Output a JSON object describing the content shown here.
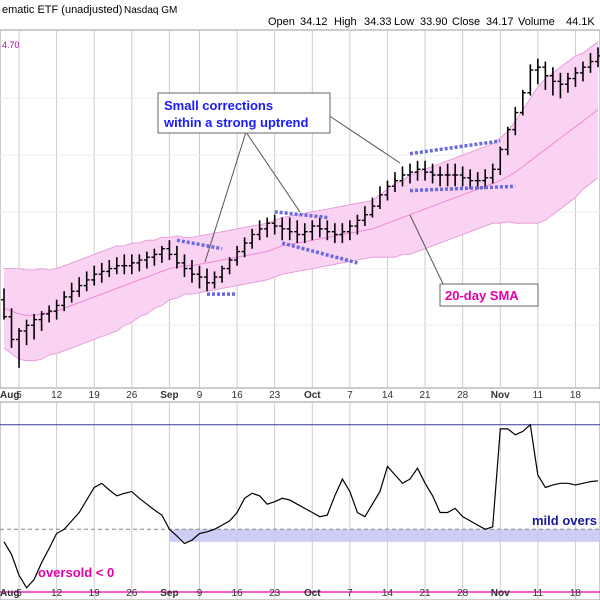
{
  "header": {
    "title_fragment": "ematic ETF (unadjusted)",
    "exchange": "Nasdaq GM",
    "open_label": "Open",
    "open": "34.12",
    "high_label": "High",
    "high": "34.33",
    "low_label": "Low",
    "low": "33.90",
    "close_label": "Close",
    "close": "34.17",
    "volume_label": "Volume",
    "volume": "44.1K",
    "upper_band_label": "4.70"
  },
  "annotations": {
    "corrections_line1": "Small corrections",
    "corrections_line2": "within a strong uptrend",
    "sma_label": "20-day SMA",
    "mild_oversold": "mild overs",
    "oversold": "oversold < 0"
  },
  "colors": {
    "band_fill": "#fbd3f2",
    "band_edge": "#e58fd6",
    "sma_line": "#ee88d8",
    "candle": "#000000",
    "trendline": "#6a6ae0",
    "grid": "#cccccc",
    "osc_line": "#000000",
    "mild_zone": "#c3c6f3",
    "oversold_line": "#e600a8",
    "upper_line": "#3a3a99"
  },
  "x_labels": [
    "Aug",
    "5",
    "12",
    "19",
    "26",
    "Sep",
    "9",
    "16",
    "23",
    "Oct",
    "7",
    "14",
    "21",
    "28",
    "Nov",
    "11",
    "18"
  ],
  "chart_data": [
    {
      "type": "ohlc",
      "title": "",
      "dates": [
        "Aug 1",
        "Aug 2",
        "Aug 5",
        "Aug 6",
        "Aug 7",
        "Aug 8",
        "Aug 9",
        "Aug 12",
        "Aug 13",
        "Aug 14",
        "Aug 15",
        "Aug 16",
        "Aug 19",
        "Aug 20",
        "Aug 21",
        "Aug 22",
        "Aug 23",
        "Aug 26",
        "Aug 27",
        "Aug 28",
        "Aug 29",
        "Aug 30",
        "Sep 3",
        "Sep 4",
        "Sep 5",
        "Sep 6",
        "Sep 9",
        "Sep 10",
        "Sep 11",
        "Sep 12",
        "Sep 13",
        "Sep 16",
        "Sep 17",
        "Sep 18",
        "Sep 19",
        "Sep 20",
        "Sep 23",
        "Sep 24",
        "Sep 25",
        "Sep 26",
        "Sep 27",
        "Sep 30",
        "Oct 1",
        "Oct 2",
        "Oct 3",
        "Oct 4",
        "Oct 7",
        "Oct 8",
        "Oct 9",
        "Oct 10",
        "Oct 11",
        "Oct 14",
        "Oct 15",
        "Oct 16",
        "Oct 17",
        "Oct 18",
        "Oct 21",
        "Oct 22",
        "Oct 23",
        "Oct 24",
        "Oct 25",
        "Oct 28",
        "Oct 29",
        "Oct 30",
        "Oct 31",
        "Nov 1",
        "Nov 4",
        "Nov 5",
        "Nov 6",
        "Nov 7",
        "Nov 8",
        "Nov 11",
        "Nov 12",
        "Nov 13",
        "Nov 14",
        "Nov 15",
        "Nov 18",
        "Nov 19",
        "Nov 20",
        "Nov 21"
      ],
      "open": [
        28.9,
        28.3,
        27.5,
        27.8,
        28.0,
        28.2,
        28.4,
        28.5,
        28.7,
        29.0,
        29.2,
        29.4,
        29.6,
        29.8,
        29.9,
        30.0,
        30.1,
        30.1,
        30.2,
        30.3,
        30.4,
        30.5,
        30.7,
        30.5,
        30.2,
        30.0,
        29.8,
        29.7,
        29.5,
        29.7,
        30.0,
        30.3,
        30.6,
        30.9,
        31.2,
        31.4,
        31.6,
        31.5,
        31.4,
        31.3,
        31.2,
        31.3,
        31.5,
        31.4,
        31.3,
        31.2,
        31.3,
        31.5,
        31.7,
        31.9,
        32.2,
        32.6,
        32.9,
        33.1,
        33.3,
        33.4,
        33.5,
        33.4,
        33.3,
        33.3,
        33.3,
        33.3,
        33.2,
        33.1,
        33.1,
        33.2,
        33.5,
        34.2,
        34.9,
        35.5,
        36.2,
        37.0,
        37.1,
        36.8,
        36.6,
        36.5,
        36.7,
        36.9,
        37.1,
        37.3
      ],
      "high": [
        29.3,
        28.6,
        27.9,
        28.2,
        28.4,
        28.5,
        28.7,
        28.9,
        29.2,
        29.5,
        29.7,
        29.9,
        30.1,
        30.2,
        30.3,
        30.4,
        30.5,
        30.5,
        30.5,
        30.6,
        30.7,
        30.8,
        31.0,
        30.8,
        30.5,
        30.3,
        30.1,
        30.0,
        29.9,
        30.1,
        30.4,
        30.8,
        31.1,
        31.4,
        31.7,
        31.8,
        31.9,
        31.8,
        31.8,
        31.7,
        31.6,
        31.7,
        31.8,
        31.7,
        31.6,
        31.6,
        31.7,
        31.9,
        32.2,
        32.5,
        32.9,
        33.1,
        33.4,
        33.6,
        33.7,
        33.8,
        33.8,
        33.7,
        33.6,
        33.7,
        33.7,
        33.6,
        33.5,
        33.4,
        33.5,
        33.7,
        34.3,
        35.0,
        35.7,
        36.3,
        37.2,
        37.4,
        37.3,
        37.1,
        36.9,
        36.9,
        37.1,
        37.3,
        37.6,
        37.8
      ],
      "low": [
        28.2,
        27.2,
        26.5,
        27.3,
        27.5,
        27.8,
        28.1,
        28.2,
        28.5,
        28.8,
        29.0,
        29.2,
        29.4,
        29.5,
        29.7,
        29.8,
        29.8,
        29.8,
        29.9,
        30.0,
        30.1,
        30.2,
        30.3,
        30.0,
        29.7,
        29.5,
        29.3,
        29.2,
        29.3,
        29.5,
        29.8,
        30.1,
        30.4,
        30.7,
        31.0,
        31.1,
        31.2,
        31.0,
        31.0,
        30.9,
        30.9,
        31.0,
        31.1,
        31.0,
        30.9,
        30.9,
        31.0,
        31.2,
        31.5,
        31.8,
        32.1,
        32.4,
        32.7,
        32.9,
        33.0,
        33.1,
        33.1,
        33.0,
        32.9,
        32.9,
        32.9,
        32.9,
        32.8,
        32.8,
        32.8,
        33.0,
        33.3,
        34.0,
        34.7,
        35.4,
        36.1,
        36.5,
        36.3,
        36.1,
        36.0,
        36.2,
        36.4,
        36.6,
        36.9,
        37.1
      ],
      "close": [
        28.3,
        27.5,
        27.8,
        28.0,
        28.2,
        28.4,
        28.5,
        28.7,
        29.0,
        29.2,
        29.4,
        29.6,
        29.8,
        29.9,
        30.0,
        30.1,
        30.1,
        30.2,
        30.3,
        30.4,
        30.5,
        30.7,
        30.5,
        30.2,
        30.0,
        29.8,
        29.7,
        29.5,
        29.7,
        30.0,
        30.3,
        30.6,
        30.9,
        31.2,
        31.4,
        31.6,
        31.5,
        31.4,
        31.3,
        31.2,
        31.3,
        31.5,
        31.4,
        31.3,
        31.2,
        31.3,
        31.5,
        31.7,
        31.9,
        32.2,
        32.6,
        32.9,
        33.1,
        33.3,
        33.4,
        33.5,
        33.4,
        33.3,
        33.3,
        33.3,
        33.3,
        33.2,
        33.1,
        33.1,
        33.2,
        33.5,
        34.2,
        34.9,
        35.5,
        36.2,
        37.0,
        37.1,
        36.8,
        36.6,
        36.5,
        36.7,
        36.9,
        37.1,
        37.3,
        37.5
      ],
      "sma20": [
        28.6,
        28.5,
        28.4,
        28.35,
        28.35,
        28.4,
        28.45,
        28.5,
        28.6,
        28.7,
        28.8,
        28.9,
        29.0,
        29.1,
        29.2,
        29.3,
        29.4,
        29.5,
        29.6,
        29.7,
        29.8,
        29.9,
        30.0,
        30.05,
        30.1,
        30.1,
        30.15,
        30.2,
        30.25,
        30.3,
        30.35,
        30.4,
        30.45,
        30.5,
        30.55,
        30.6,
        30.7,
        30.8,
        30.85,
        30.9,
        30.95,
        31.0,
        31.05,
        31.1,
        31.15,
        31.2,
        31.25,
        31.3,
        31.35,
        31.4,
        31.5,
        31.6,
        31.7,
        31.8,
        31.9,
        32.0,
        32.1,
        32.2,
        32.3,
        32.4,
        32.5,
        32.6,
        32.7,
        32.8,
        32.9,
        33.0,
        33.1,
        33.25,
        33.4,
        33.6,
        33.8,
        34.0,
        34.2,
        34.4,
        34.6,
        34.8,
        35.0,
        35.2,
        35.4,
        35.6
      ],
      "band_width": [
        1.4,
        1.5,
        1.6,
        1.6,
        1.6,
        1.6,
        1.5,
        1.5,
        1.5,
        1.5,
        1.5,
        1.5,
        1.5,
        1.5,
        1.5,
        1.5,
        1.4,
        1.4,
        1.3,
        1.3,
        1.2,
        1.2,
        1.1,
        1.1,
        1.0,
        1.0,
        1.0,
        1.0,
        1.0,
        1.0,
        1.0,
        1.0,
        1.0,
        1.0,
        1.0,
        1.0,
        1.0,
        1.0,
        1.0,
        1.0,
        1.0,
        1.0,
        1.0,
        1.0,
        1.0,
        1.0,
        1.0,
        1.0,
        1.0,
        1.0,
        1.1,
        1.2,
        1.3,
        1.3,
        1.4,
        1.4,
        1.4,
        1.4,
        1.4,
        1.4,
        1.4,
        1.4,
        1.4,
        1.4,
        1.4,
        1.4,
        1.5,
        1.6,
        1.8,
        2.0,
        2.2,
        2.4,
        2.5,
        2.5,
        2.5,
        2.5,
        2.5,
        2.4,
        2.4,
        2.4
      ],
      "ylim": [
        26.0,
        38.2
      ]
    },
    {
      "type": "line",
      "title": "",
      "values": [
        -40,
        -55,
        -80,
        -95,
        -85,
        -65,
        -48,
        -30,
        -25,
        -15,
        -5,
        10,
        25,
        30,
        22,
        15,
        18,
        20,
        12,
        5,
        -2,
        -8,
        -25,
        -33,
        -42,
        -38,
        -30,
        -28,
        -25,
        -20,
        -15,
        -5,
        12,
        18,
        15,
        5,
        8,
        12,
        10,
        5,
        0,
        -5,
        -10,
        -8,
        15,
        35,
        20,
        -5,
        -10,
        5,
        20,
        50,
        40,
        30,
        35,
        48,
        30,
        15,
        -5,
        -5,
        0,
        -10,
        -15,
        -20,
        -25,
        -22,
        95,
        95,
        88,
        92,
        100,
        40,
        25,
        28,
        30,
        30,
        28,
        30,
        32,
        33
      ],
      "ylim": [
        -100,
        120
      ],
      "reference_lines": {
        "upper": 100,
        "mild_oversold_from": -40,
        "mild_oversold_to": -25,
        "oversold": -100
      }
    }
  ]
}
